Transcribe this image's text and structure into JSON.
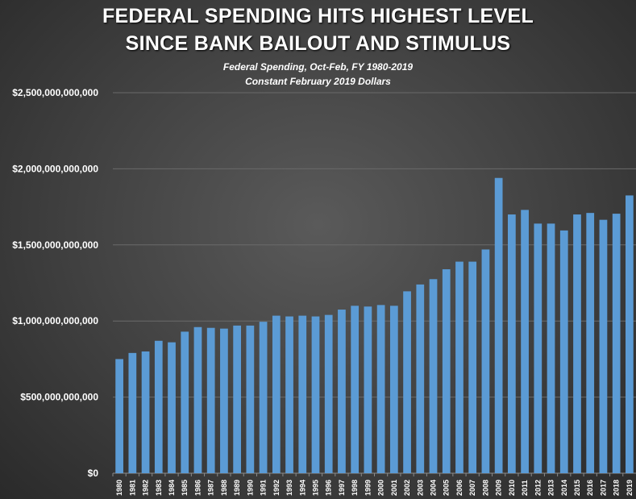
{
  "chart_data": {
    "type": "bar",
    "title": "FEDERAL SPENDING HITS HIGHEST LEVEL",
    "title_line2": "SINCE BANK BAILOUT AND STIMULUS",
    "subtitle": "Federal Spending,  Oct-Feb,  FY 1980-2019",
    "subtitle_line2": "Constant  February  2019 Dollars",
    "xlabel": "",
    "ylabel": "",
    "ylim": [
      0,
      2500000000000
    ],
    "yticks": [
      0,
      500000000000,
      1000000000000,
      1500000000000,
      2000000000000,
      2500000000000
    ],
    "ytick_labels": [
      "$0",
      "$500,000,000,000",
      "$1,000,000,000,000",
      "$1,500,000,000,000",
      "$2,000,000,000,000",
      "$2,500,000,000,000"
    ],
    "grid": true,
    "bar_color": "#5b9bd5",
    "categories": [
      "1980",
      "1981",
      "1982",
      "1983",
      "1984",
      "1985",
      "1986",
      "1987",
      "1988",
      "1989",
      "1990",
      "1991",
      "1992",
      "1993",
      "1994",
      "1995",
      "1996",
      "1997",
      "1998",
      "1999",
      "2000",
      "2001",
      "2002",
      "2003",
      "2004",
      "2005",
      "2006",
      "2007",
      "2008",
      "2009",
      "2010",
      "2011",
      "2012",
      "2013",
      "2014",
      "2015",
      "2016",
      "2017",
      "2018",
      "2019"
    ],
    "values": [
      750000000000,
      790000000000,
      800000000000,
      870000000000,
      860000000000,
      930000000000,
      960000000000,
      955000000000,
      950000000000,
      970000000000,
      970000000000,
      995000000000,
      1035000000000,
      1030000000000,
      1035000000000,
      1030000000000,
      1040000000000,
      1075000000000,
      1100000000000,
      1095000000000,
      1105000000000,
      1100000000000,
      1195000000000,
      1240000000000,
      1275000000000,
      1340000000000,
      1390000000000,
      1390000000000,
      1470000000000,
      1940000000000,
      1700000000000,
      1730000000000,
      1640000000000,
      1640000000000,
      1595000000000,
      1700000000000,
      1710000000000,
      1665000000000,
      1705000000000,
      1825000000000
    ]
  }
}
